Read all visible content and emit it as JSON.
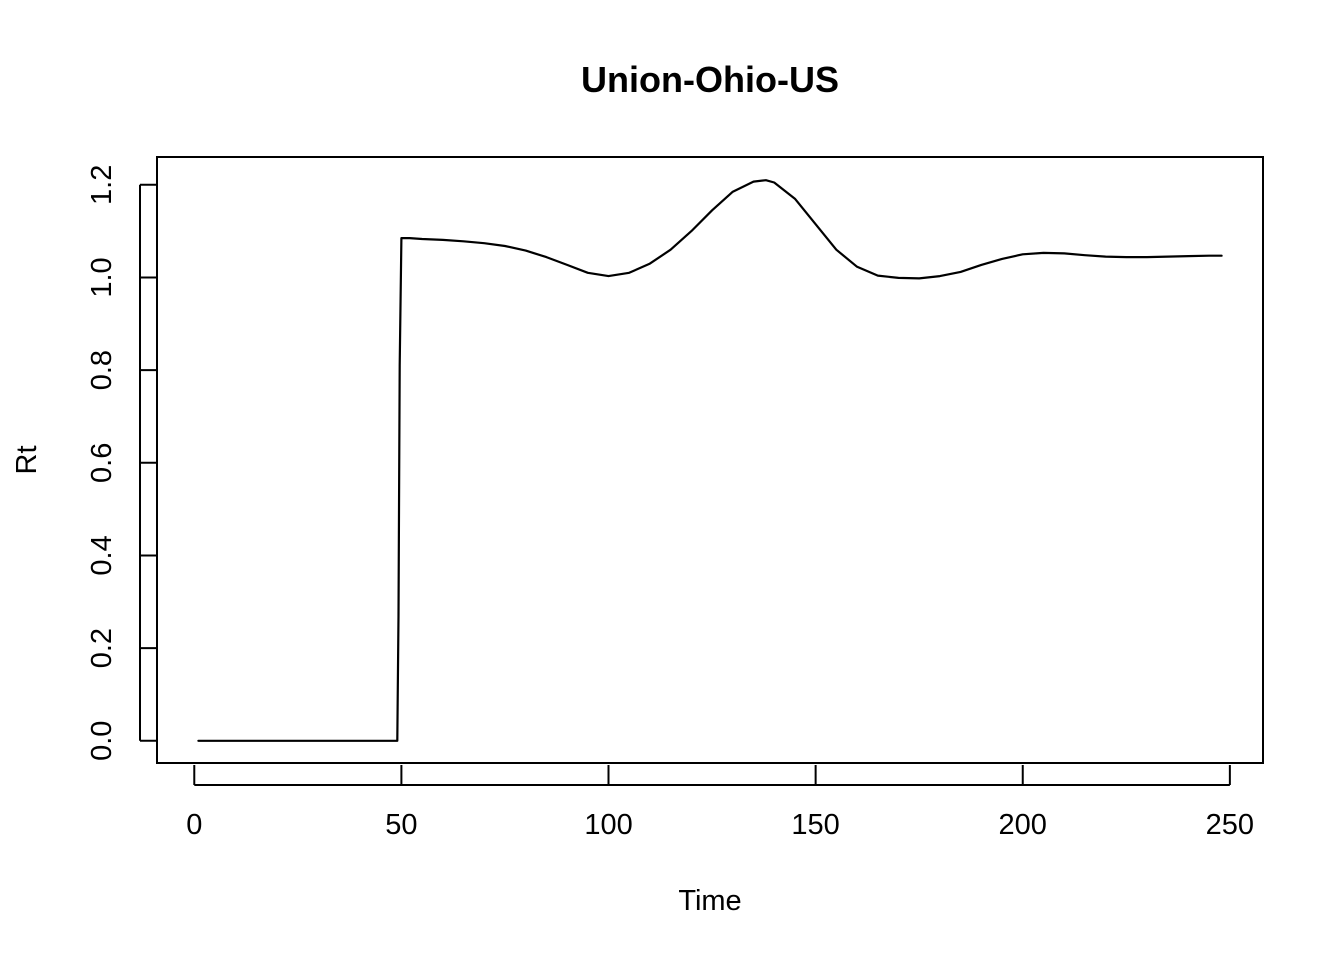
{
  "chart_data": {
    "type": "line",
    "title": "Union-Ohio-US",
    "xlabel": "Time",
    "ylabel": "Rt",
    "xlim": [
      -9,
      258
    ],
    "ylim": [
      -0.048,
      1.26
    ],
    "x_ticks": [
      0,
      50,
      100,
      150,
      200,
      250
    ],
    "y_ticks": [
      0.0,
      0.2,
      0.4,
      0.6,
      0.8,
      1.0,
      1.2
    ],
    "x_tick_labels": [
      "0",
      "50",
      "100",
      "150",
      "200",
      "250"
    ],
    "y_tick_labels": [
      "0.0",
      "0.2",
      "0.4",
      "0.6",
      "0.8",
      "1.0",
      "1.2"
    ],
    "grid": false,
    "line_color": "#000000",
    "series": [
      {
        "x": [
          1,
          10,
          20,
          30,
          40,
          48,
          49,
          49.3,
          49.6,
          50,
          52,
          55,
          60,
          65,
          70,
          75,
          80,
          85,
          90,
          95,
          100,
          105,
          110,
          115,
          120,
          125,
          130,
          135,
          138,
          140,
          145,
          150,
          155,
          160,
          165,
          170,
          175,
          180,
          185,
          190,
          195,
          200,
          205,
          210,
          215,
          220,
          225,
          230,
          235,
          240,
          245,
          248
        ],
        "y": [
          0.0,
          0.0,
          0.0,
          0.0,
          0.0,
          0.0,
          0.0,
          0.27,
          0.81,
          1.085,
          1.085,
          1.083,
          1.081,
          1.078,
          1.074,
          1.068,
          1.058,
          1.044,
          1.027,
          1.01,
          1.003,
          1.01,
          1.03,
          1.06,
          1.1,
          1.145,
          1.185,
          1.207,
          1.21,
          1.205,
          1.17,
          1.115,
          1.06,
          1.023,
          1.004,
          0.999,
          0.998,
          1.003,
          1.012,
          1.027,
          1.04,
          1.05,
          1.053,
          1.052,
          1.048,
          1.045,
          1.044,
          1.044,
          1.045,
          1.046,
          1.047,
          1.047
        ]
      }
    ]
  }
}
